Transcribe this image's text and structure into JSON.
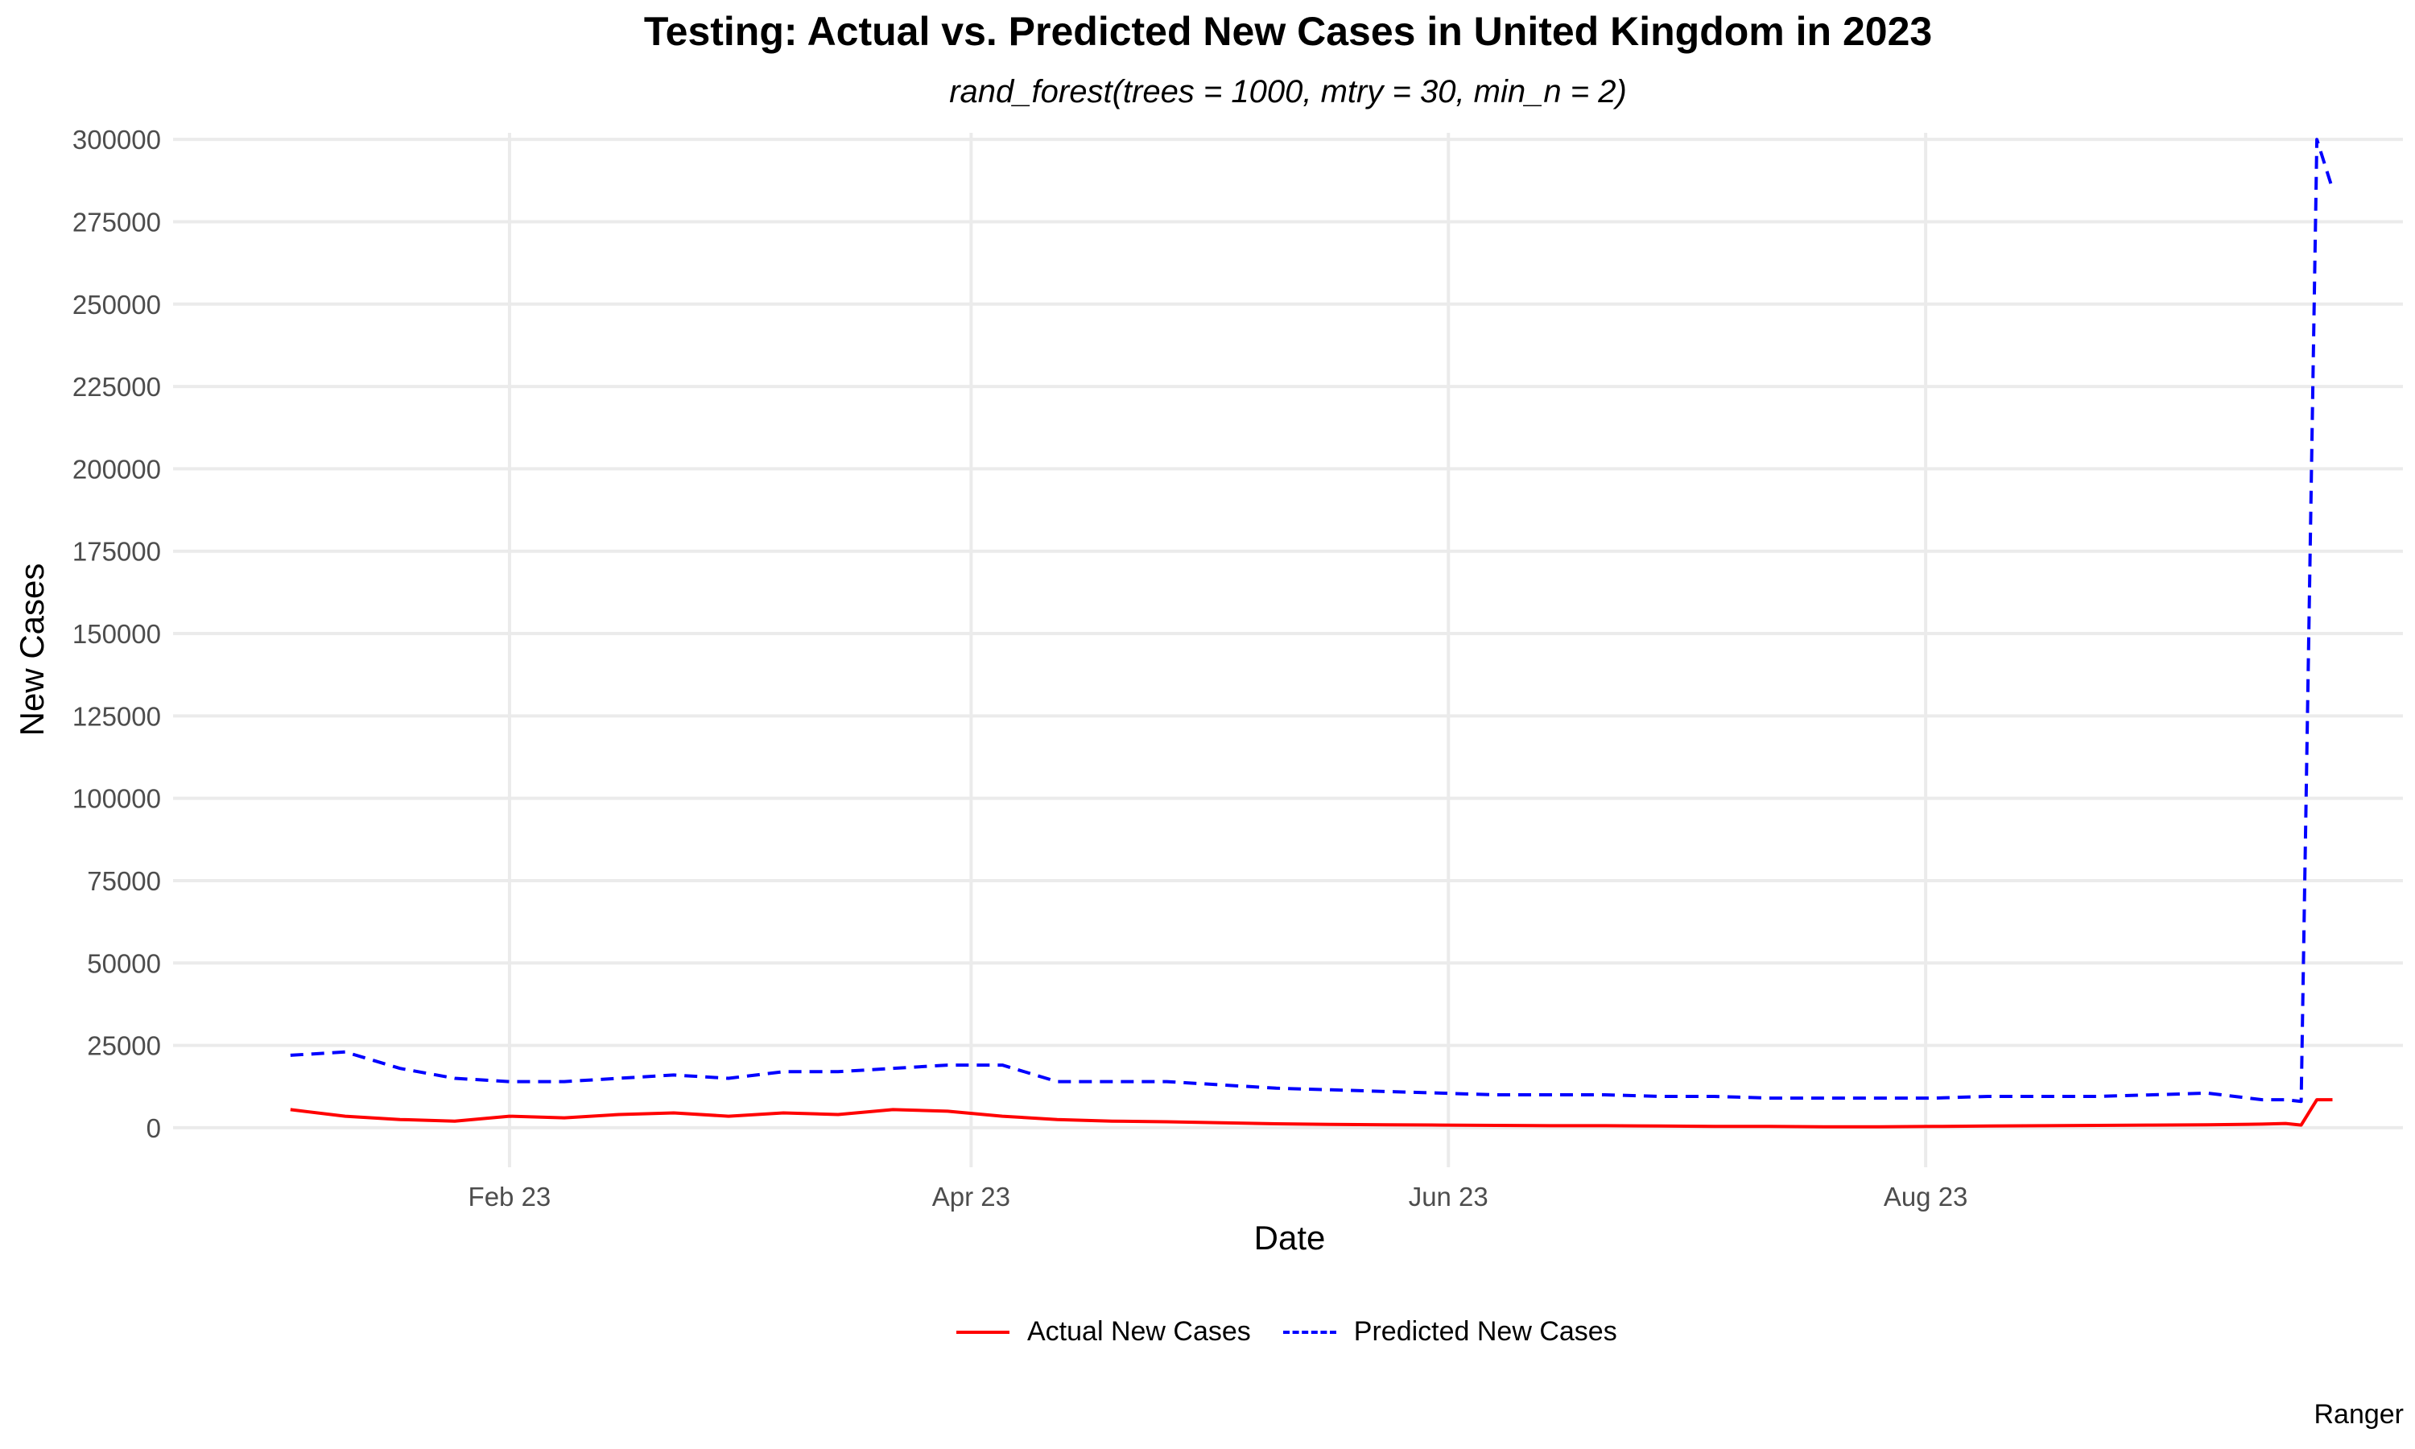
{
  "chart_data": {
    "type": "line",
    "title": "Testing: Actual vs. Predicted New Cases in United Kingdom in 2023",
    "subtitle": "rand_forest(trees = 1000, mtry = 30, min_n = 2)",
    "caption": "Ranger",
    "xlabel": "Date",
    "ylabel": "New Cases",
    "x_ticks": [
      "Feb 23",
      "Apr 23",
      "Jun 23",
      "Aug 23"
    ],
    "y_ticks": [
      "0",
      "25000",
      "50000",
      "75000",
      "100000",
      "125000",
      "150000",
      "175000",
      "200000",
      "225000",
      "250000",
      "275000",
      "300000"
    ],
    "ylim": [
      -12000,
      302000
    ],
    "xlim": [
      "2022-12-20",
      "2023-10-01"
    ],
    "grid": true,
    "legend_position": "bottom",
    "x": [
      "2023-01-04",
      "2023-01-11",
      "2023-01-18",
      "2023-01-25",
      "2023-02-01",
      "2023-02-08",
      "2023-02-15",
      "2023-02-22",
      "2023-03-01",
      "2023-03-08",
      "2023-03-15",
      "2023-03-22",
      "2023-03-29",
      "2023-04-05",
      "2023-04-12",
      "2023-04-19",
      "2023-04-26",
      "2023-05-03",
      "2023-05-10",
      "2023-05-17",
      "2023-05-24",
      "2023-05-31",
      "2023-06-07",
      "2023-06-14",
      "2023-06-21",
      "2023-06-28",
      "2023-07-05",
      "2023-07-12",
      "2023-07-19",
      "2023-07-26",
      "2023-08-02",
      "2023-08-09",
      "2023-08-16",
      "2023-08-23",
      "2023-08-30",
      "2023-09-06",
      "2023-09-13",
      "2023-09-16",
      "2023-09-18",
      "2023-09-20",
      "2023-09-22"
    ],
    "series": [
      {
        "name": "Actual New Cases",
        "color": "#ff0000",
        "dash": "solid",
        "values": [
          5500,
          3500,
          2500,
          2000,
          3500,
          3000,
          4000,
          4500,
          3500,
          4500,
          4000,
          5500,
          5000,
          3500,
          2500,
          2000,
          1800,
          1500,
          1200,
          1000,
          900,
          800,
          700,
          600,
          600,
          500,
          400,
          400,
          300,
          300,
          400,
          500,
          600,
          700,
          800,
          900,
          1100,
          1300,
          800,
          8500,
          8500
        ]
      },
      {
        "name": "Predicted New Cases",
        "color": "#0000ff",
        "dash": "dashed",
        "values": [
          22000,
          23000,
          18000,
          15000,
          14000,
          14000,
          15000,
          16000,
          15000,
          17000,
          17000,
          18000,
          19000,
          19000,
          14000,
          14000,
          14000,
          13000,
          12000,
          11500,
          11000,
          10500,
          10000,
          10000,
          10000,
          9500,
          9500,
          9000,
          9000,
          9000,
          9000,
          9500,
          9500,
          9500,
          10000,
          10500,
          8500,
          8500,
          8000,
          300000,
          285000
        ]
      }
    ]
  }
}
